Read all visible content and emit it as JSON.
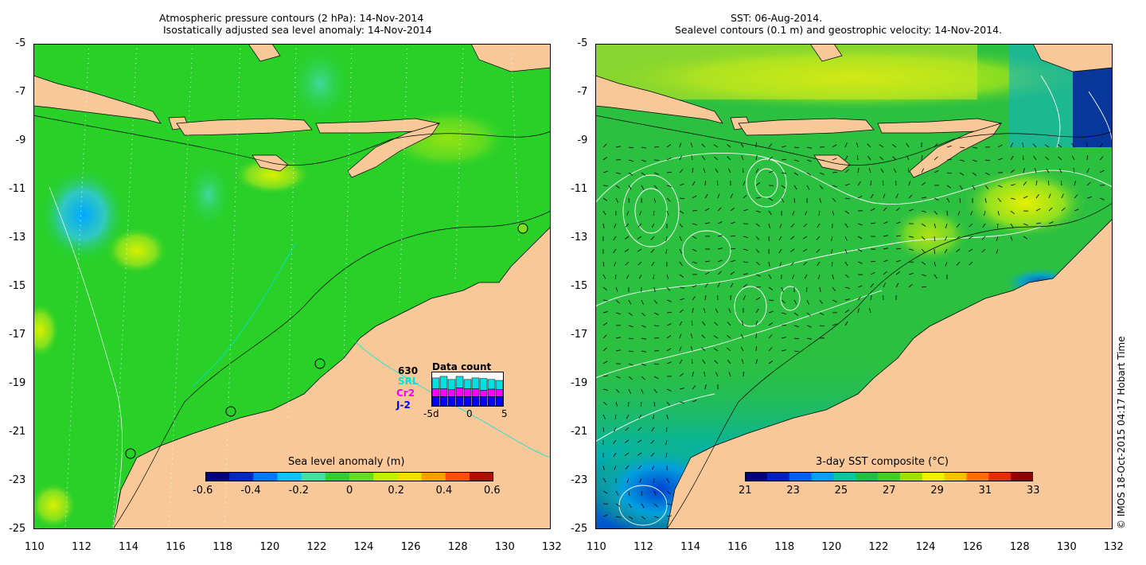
{
  "left_panel": {
    "title_line1": "Atmospheric pressure contours (2 hPa): 14-Nov-2014",
    "title_line2": "Isostatically adjusted sea level anomaly: 14-Nov-2014",
    "colorbar": {
      "title": "Sea level anomaly (m)",
      "ticks": [
        "-0.6",
        "-0.4",
        "-0.2",
        "0",
        "0.2",
        "0.4",
        "0.6"
      ],
      "colors": [
        "#000080",
        "#0028c8",
        "#0078ff",
        "#00c8ff",
        "#40e0a0",
        "#30d030",
        "#60e020",
        "#c0f000",
        "#f0e000",
        "#ffa000",
        "#ff5000",
        "#b01000"
      ]
    },
    "data_count": {
      "title": "Data count",
      "max_label": "630",
      "satellites": [
        {
          "name": "SRL",
          "color": "#00e0e0"
        },
        {
          "name": "Cr2",
          "color": "#ff00ff"
        },
        {
          "name": "J-2",
          "color": "#0000ff"
        }
      ],
      "x_ticks": [
        "-5d",
        "0",
        "5"
      ],
      "bars": [
        {
          "j2": 0.3,
          "cr2": 0.25,
          "srl": 0.35
        },
        {
          "j2": 0.3,
          "cr2": 0.25,
          "srl": 0.4
        },
        {
          "j2": 0.3,
          "cr2": 0.22,
          "srl": 0.33
        },
        {
          "j2": 0.3,
          "cr2": 0.28,
          "srl": 0.37
        },
        {
          "j2": 0.3,
          "cr2": 0.25,
          "srl": 0.3
        },
        {
          "j2": 0.3,
          "cr2": 0.25,
          "srl": 0.35
        },
        {
          "j2": 0.3,
          "cr2": 0.2,
          "srl": 0.38
        },
        {
          "j2": 0.3,
          "cr2": 0.24,
          "srl": 0.31
        },
        {
          "j2": 0.3,
          "cr2": 0.22,
          "srl": 0.3
        }
      ]
    }
  },
  "right_panel": {
    "title_line1": "SST: 06-Aug-2014.",
    "title_line2": "Sealevel contours (0.1 m) and geostrophic velocity: 14-Nov-2014.",
    "colorbar": {
      "title": "3-day SST composite (°C)",
      "ticks": [
        "21",
        "23",
        "25",
        "27",
        "29",
        "31",
        "33"
      ],
      "colors": [
        "#000080",
        "#0020c0",
        "#0060ff",
        "#00a0ff",
        "#00c8a0",
        "#20c040",
        "#40d020",
        "#a0e000",
        "#f0f000",
        "#ffc000",
        "#ff7000",
        "#e03000",
        "#900000"
      ]
    }
  },
  "axes": {
    "lon_ticks": [
      "110",
      "112",
      "114",
      "116",
      "118",
      "120",
      "122",
      "124",
      "126",
      "128",
      "130",
      "132"
    ],
    "lat_ticks": [
      "-5",
      "-7",
      "-9",
      "-11",
      "-13",
      "-15",
      "-17",
      "-19",
      "-21",
      "-23",
      "-25"
    ]
  },
  "credit": "© IMOS 18-Oct-2015 04:17 Hobart Time",
  "colors": {
    "land": "#f8c898",
    "ocean_left": "#28d028",
    "ocean_right": "#2cc040"
  }
}
